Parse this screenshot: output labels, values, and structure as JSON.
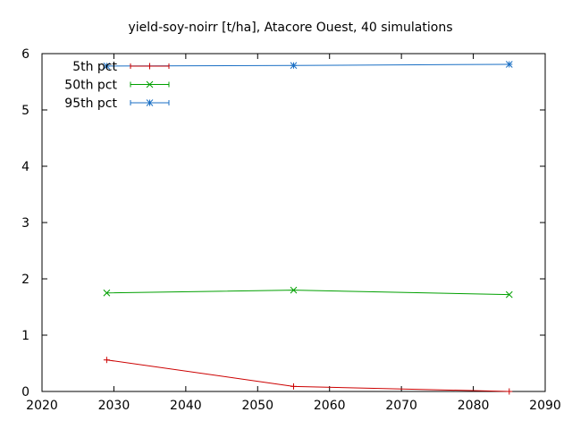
{
  "chart_data": {
    "type": "line",
    "title": "yield-soy-noirr [t/ha], Atacore Ouest, 40 simulations",
    "xlabel": "",
    "ylabel": "",
    "xlim": [
      2020,
      2090
    ],
    "ylim": [
      0,
      6
    ],
    "xticks": [
      2020,
      2030,
      2040,
      2050,
      2060,
      2070,
      2080,
      2090
    ],
    "yticks": [
      0,
      1,
      2,
      3,
      4,
      5,
      6
    ],
    "grid": false,
    "legend_position": "top-left",
    "x": [
      2029,
      2055,
      2085
    ],
    "series": [
      {
        "name": "5th pct",
        "values": [
          0.56,
          0.09,
          0.0
        ],
        "color": "#cc0000",
        "marker": "plus"
      },
      {
        "name": "50th pct",
        "values": [
          1.75,
          1.8,
          1.72
        ],
        "color": "#00a000",
        "marker": "cross"
      },
      {
        "name": "95th pct",
        "values": [
          5.78,
          5.79,
          5.81
        ],
        "color": "#1a6fc4",
        "marker": "star"
      }
    ]
  }
}
